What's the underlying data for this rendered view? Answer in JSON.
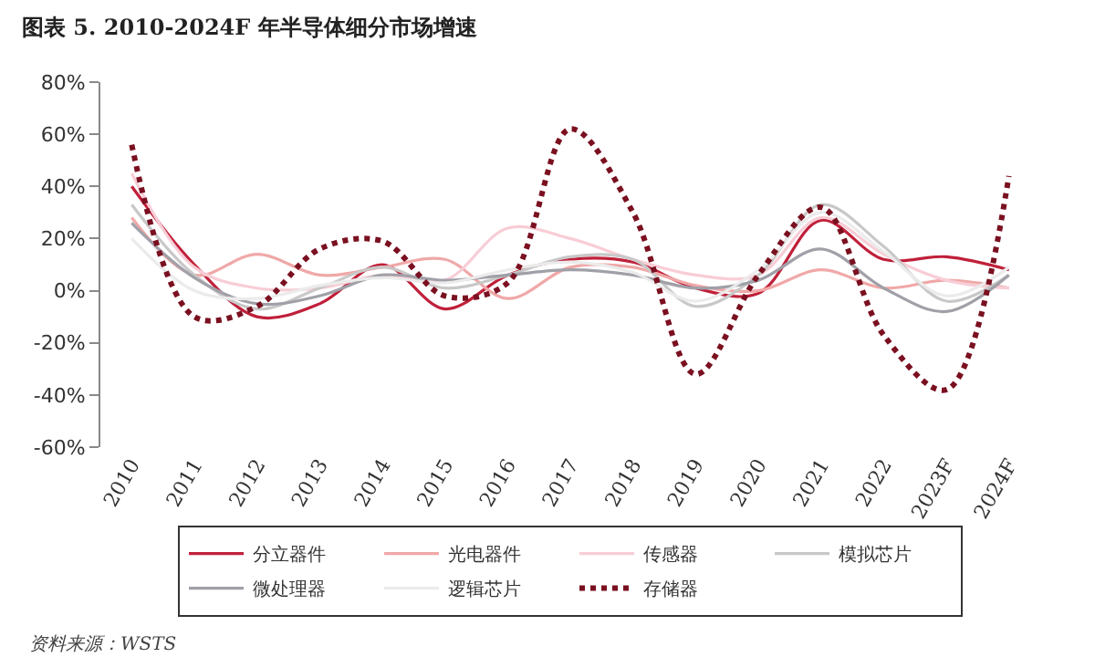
{
  "chart_data": {
    "type": "line",
    "title": "图表 5. 2010-2024F 年半导体细分市场增速",
    "categories": [
      "2010",
      "2011",
      "2012",
      "2013",
      "2014",
      "2015",
      "2016",
      "2017",
      "2018",
      "2019",
      "2020",
      "2021",
      "2022",
      "2023F",
      "2024F"
    ],
    "series": [
      {
        "name": "分立器件",
        "color": "#c0203a",
        "values": [
          40,
          10,
          -10,
          -5,
          10,
          -7,
          6,
          12,
          11,
          1,
          -1,
          27,
          12,
          13,
          8
        ]
      },
      {
        "name": "光电器件",
        "color": "#f0a8a8",
        "values": [
          28,
          6,
          14,
          6,
          9,
          12,
          -3,
          9,
          9,
          2,
          0,
          8,
          1,
          4,
          1
        ]
      },
      {
        "name": "传感器",
        "color": "#f8cdd6",
        "values": [
          45,
          9,
          1,
          1,
          6,
          4,
          24,
          20,
          12,
          6,
          6,
          28,
          14,
          4,
          1
        ]
      },
      {
        "name": "模拟芯片",
        "color": "#c8c8c8",
        "values": [
          33,
          6,
          -7,
          1,
          9,
          1,
          6,
          13,
          12,
          -6,
          6,
          33,
          17,
          -4,
          6
        ]
      },
      {
        "name": "微处理器",
        "color": "#a0a0a8",
        "values": [
          26,
          5,
          -5,
          -2,
          6,
          4,
          6,
          8,
          6,
          1,
          4,
          16,
          1,
          -8,
          6
        ]
      },
      {
        "name": "逻辑芯片",
        "color": "#ebebeb",
        "values": [
          20,
          0,
          -3,
          2,
          5,
          3,
          8,
          11,
          7,
          -4,
          8,
          30,
          15,
          -2,
          9
        ]
      },
      {
        "name": "存储器",
        "color": "#7a1020",
        "line_style": "dotted",
        "values": [
          56,
          -10,
          -6,
          16,
          19,
          -2,
          3,
          62,
          30,
          -32,
          6,
          32,
          -17,
          -38,
          44
        ]
      }
    ],
    "ylim": [
      -60,
      80
    ],
    "yticks": [
      {
        "value": -60,
        "label": "-60%"
      },
      {
        "value": -40,
        "label": "-40%"
      },
      {
        "value": -20,
        "label": "-20%"
      },
      {
        "value": 0,
        "label": "0%"
      },
      {
        "value": 20,
        "label": "20%"
      },
      {
        "value": 40,
        "label": "40%"
      },
      {
        "value": 60,
        "label": "60%"
      },
      {
        "value": 80,
        "label": "80%"
      }
    ],
    "grid": false,
    "legend": "bottom",
    "marker": "none",
    "line_style": "solid",
    "annotations": [
      "资料来源：WSTS"
    ]
  }
}
